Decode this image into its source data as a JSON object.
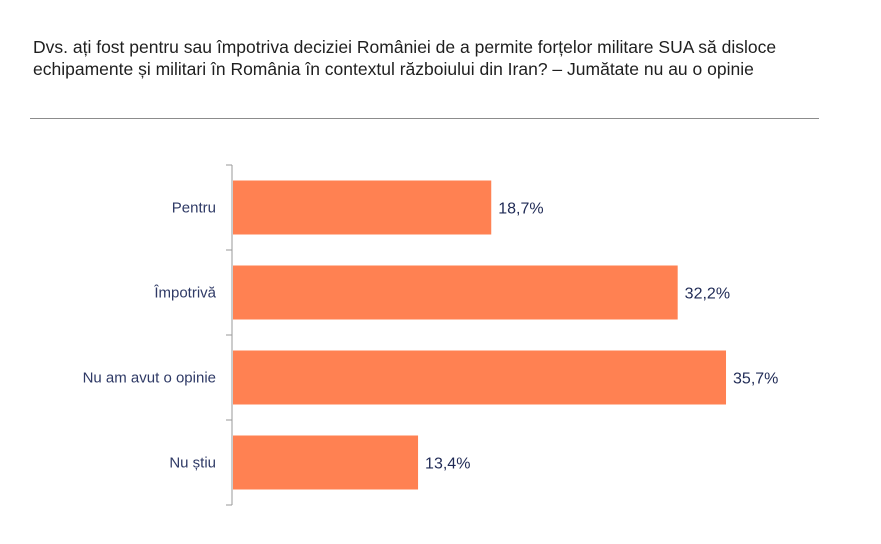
{
  "chart_data": {
    "type": "bar",
    "orientation": "horizontal",
    "title": "Dvs. ați fost pentru sau împotriva deciziei României de a permite forțelor militare SUA să disloce echipamente și militari în România în contextul războiului din Iran? – Jumătate nu au o opinie",
    "categories": [
      "Pentru",
      "Împotrivă",
      "Nu am avut o opinie",
      "Nu știu"
    ],
    "values": [
      18.7,
      32.2,
      35.7,
      13.4
    ],
    "value_labels": [
      "18,7%",
      "32,2%",
      "35,7%",
      "13,4%"
    ],
    "unit": "%",
    "xlim": [
      0,
      100
    ],
    "bar_color": "#ff8152",
    "grid": false,
    "legend": "none"
  }
}
